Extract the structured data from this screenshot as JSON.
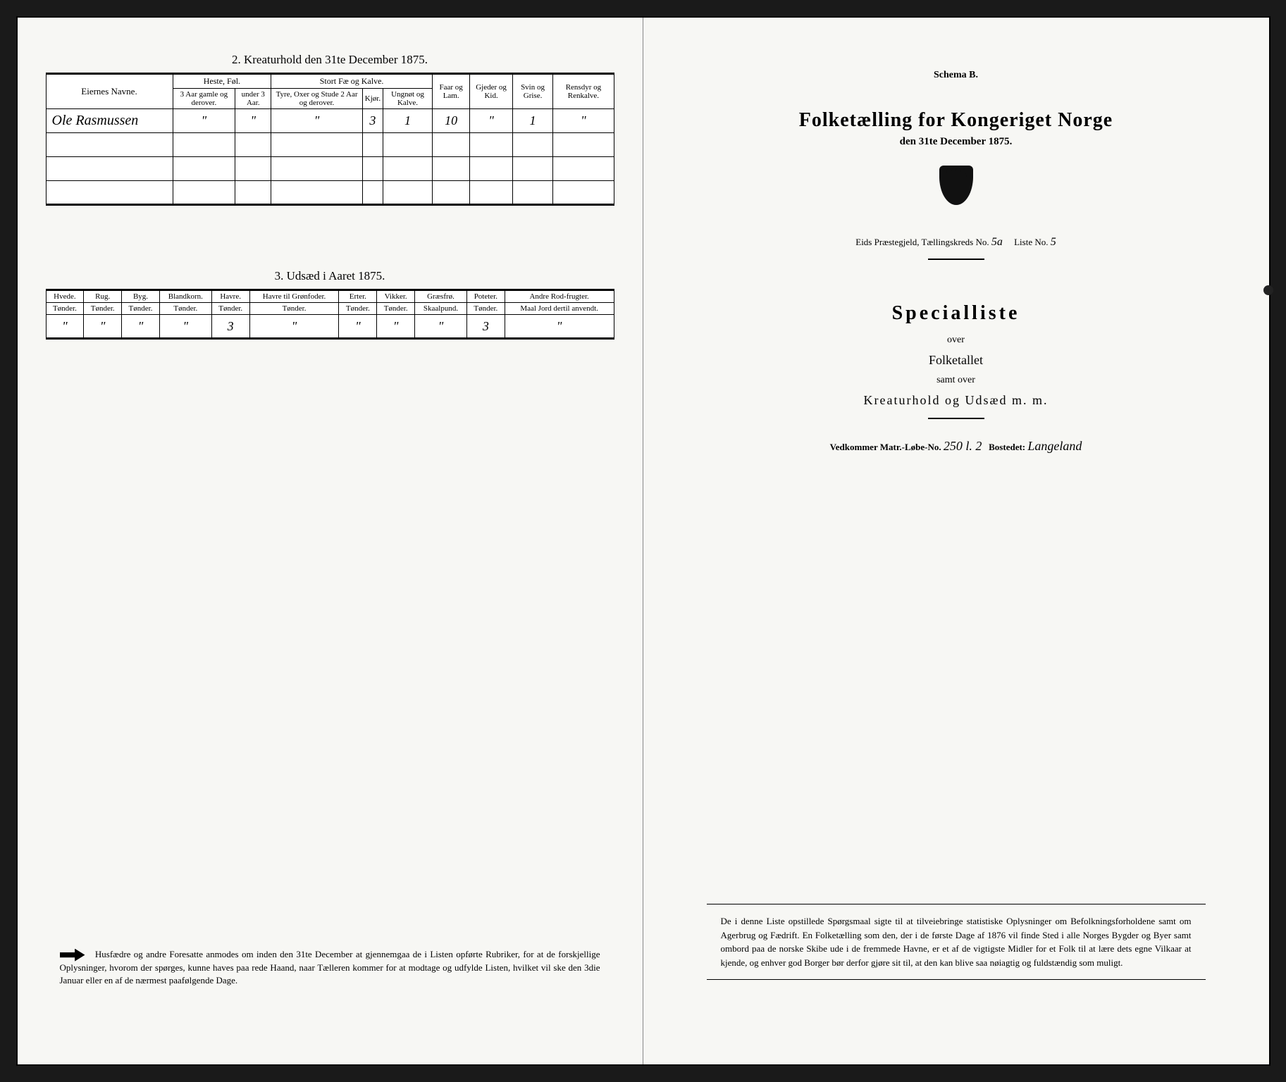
{
  "background_color": "#1a1a1a",
  "paper_color": "#f7f7f4",
  "left_page": {
    "section2": {
      "title": "2.  Kreaturhold den 31te December 1875.",
      "owner_header": "Eiernes Navne.",
      "group_headers": {
        "heste": "Heste, Føl.",
        "storfe": "Stort Fæ og Kalve."
      },
      "col_headers": {
        "h1": "3 Aar gamle og derover.",
        "h2": "under 3 Aar.",
        "s1": "Tyre, Oxer og Stude 2 Aar og derover.",
        "s2": "Kjør.",
        "s3": "Ungnøt og Kalve.",
        "faar": "Faar og Lam.",
        "gjeder": "Gjeder og Kid.",
        "svin": "Svin og Grise.",
        "ren": "Rensdyr og Renkalve."
      },
      "row": {
        "name": "Ole Rasmussen",
        "h1": "\"",
        "h2": "\"",
        "s1": "\"",
        "s2": "3",
        "s3": "1",
        "faar": "10",
        "gjeder": "\"",
        "svin": "1",
        "ren": "\""
      }
    },
    "section3": {
      "title": "3.  Udsæd i Aaret 1875.",
      "headers": {
        "hvede": "Hvede.",
        "hvede_u": "Tønder.",
        "rug": "Rug.",
        "rug_u": "Tønder.",
        "byg": "Byg.",
        "byg_u": "Tønder.",
        "bland": "Blandkorn.",
        "bland_u": "Tønder.",
        "havre": "Havre.",
        "havre_u": "Tønder.",
        "havre_g": "Havre til Grønfoder.",
        "havre_g_u": "Tønder.",
        "erter": "Erter.",
        "erter_u": "Tønder.",
        "vikker": "Vikker.",
        "vikker_u": "Tønder.",
        "graes": "Græsfrø.",
        "graes_u": "Skaalpund.",
        "poteter": "Poteter.",
        "poteter_u": "Tønder.",
        "andre": "Andre Rod-frugter.",
        "andre_u": "Maal Jord dertil anvendt."
      },
      "row": {
        "hvede": "\"",
        "rug": "\"",
        "byg": "\"",
        "bland": "\"",
        "havre": "3",
        "havre_g": "\"",
        "erter": "\"",
        "vikker": "\"",
        "graes": "\"",
        "poteter": "3",
        "andre": "\""
      }
    },
    "footnote": "Husfædre og andre Foresatte anmodes om inden den 31te December at gjennemgaa de i Listen opførte Rubriker, for at de forskjellige Oplysninger, hvorom der spørges, kunne haves paa rede Haand, naar Tælleren kommer for at modtage og udfylde Listen, hvilket vil ske den 3die Januar eller en af de nærmest paafølgende Dage."
  },
  "right_page": {
    "schema": "Schema B.",
    "title": "Folketælling for Kongeriget Norge",
    "subtitle": "den 31te December 1875.",
    "parish_line_prefix": "Eids Præstegjeld,  Tællingskreds No.",
    "kreds_no": "5a",
    "liste_prefix": "Liste No.",
    "liste_no": "5",
    "special_title": "Specialliste",
    "over": "over",
    "folketallet": "Folketallet",
    "samt_over": "samt over",
    "kreatur": "Kreaturhold og Udsæd m. m.",
    "matr_prefix": "Vedkommer Matr.-Løbe-No.",
    "matr_no": "250 l. 2",
    "bosted_prefix": "Bostedet:",
    "bosted": "Langeland",
    "bottom_note": "De i denne Liste opstillede Spørgsmaal sigte til at tilveiebringe statistiske Oplysninger om Befolkningsforholdene samt om Agerbrug og Fædrift.  En Folketælling som den, der i de første Dage af 1876 vil finde Sted i alle Norges Bygder og Byer samt ombord paa de norske Skibe ude i de fremmede Havne, er et af de vigtigste Midler for et Folk til at lære dets egne Vilkaar at kjende, og enhver god Borger bør derfor gjøre sit til, at den kan blive saa nøiagtig og fuldstændig som muligt."
  }
}
